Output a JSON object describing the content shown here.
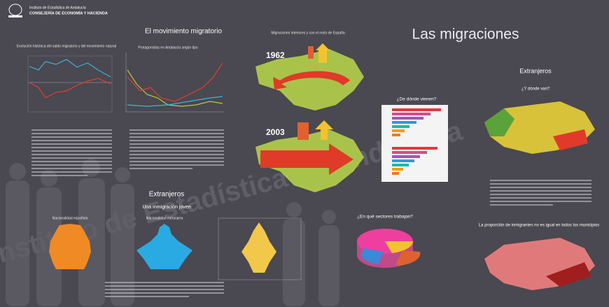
{
  "header": {
    "institute": "Instituto de Estadística de Andalucía",
    "department": "CONSEJERÍA DE ECONOMÍA Y HACIENDA"
  },
  "title": "Las migraciones",
  "watermark": "Instituto de Estadística de Andalucía",
  "movement": {
    "heading": "El movimiento migratorio",
    "chart1_title": "Evolución histórica del saldo migratorio y del movimiento natural",
    "chart2_title": "Protagonistas en Andalucía según tipo"
  },
  "interior": {
    "heading": "Migraciones interiores y con el resto de España",
    "year1": "1962",
    "year2": "2003"
  },
  "origin": {
    "heading": "¿De dónde vienen?"
  },
  "foreigners_right": {
    "heading": "Extranjeros",
    "subheading": "¿Y dónde van?",
    "proportion": "La proporción de inmigrantes no es igual en todos los municipios"
  },
  "foreigners_center": {
    "heading": "Extranjeros",
    "subheading": "Una inmigración joven",
    "pyramid1": "Nacionalidad española",
    "pyramid2": "Nacionalidad extranjera"
  },
  "sectors": {
    "heading": "¿En qué sectores trabajan?"
  }
}
